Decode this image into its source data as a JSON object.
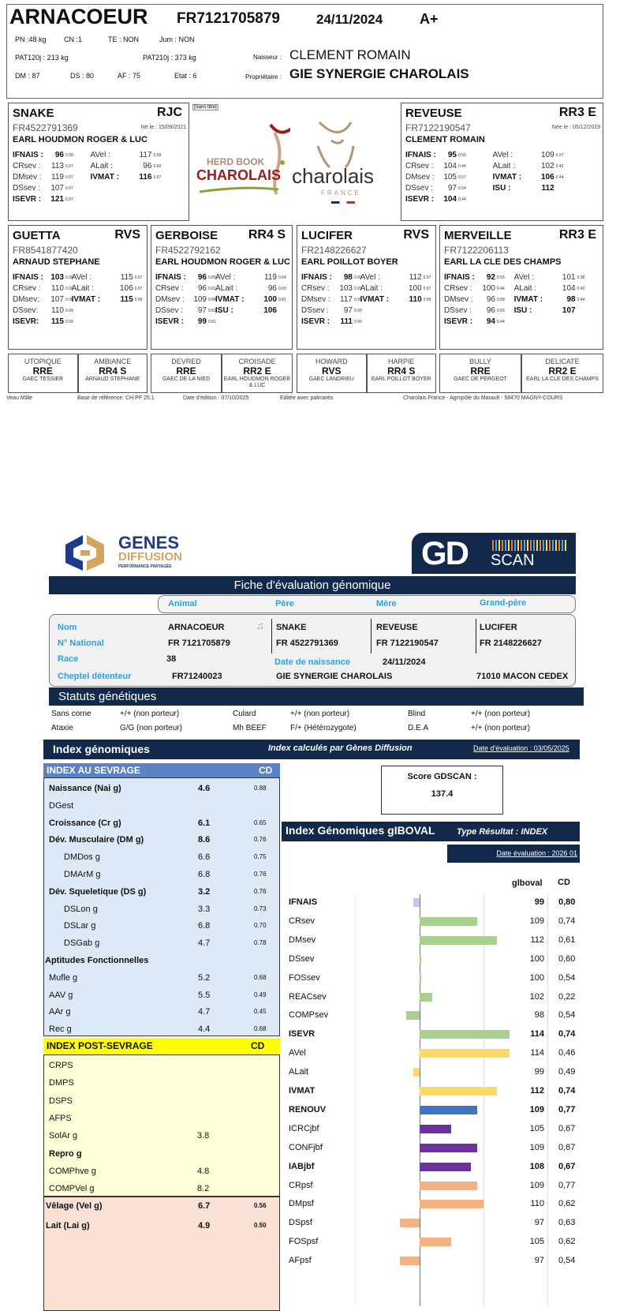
{
  "pedigree": {
    "animal": {
      "name": "ARNACOEUR",
      "national": "FR7121705879",
      "birth": "24/11/2024",
      "grade": "A+",
      "line1": [
        "PN :48 kg",
        "CN :1",
        "TE : NON",
        "Jum : NON"
      ],
      "line2": [
        "PAT120j : 213 kg",
        "PAT210j : 373 kg"
      ],
      "line3": [
        "DM : 87",
        "DS : 80",
        "AF : 75",
        "Etat : 6"
      ],
      "breeder_label": "Naisseur :",
      "breeder": "CLEMENT ROMAIN",
      "owner_label": "Propriétaire :",
      "owner": "GIE SYNERGIE CHAROLAIS"
    },
    "tooltip": "[Sans titre]",
    "logos": {
      "herdbook_top": "HERD BOOK",
      "herdbook_main": "CHAROLAIS",
      "cf_main": "charolais",
      "cf_sub": "FRANCE"
    },
    "sire": {
      "name": "SNAKE",
      "cls": "RJC",
      "nat": "FR4522791369",
      "born": "Né le : 15/09/2021",
      "owner": "EARL HOUDMON ROGER & LUC",
      "left": [
        [
          "IFNAIS :",
          "96",
          "0.99",
          true
        ],
        [
          "CRsev :",
          "113",
          "0.97",
          false
        ],
        [
          "DMsev :",
          "119",
          "0.97",
          false
        ],
        [
          "DSsev :",
          "107",
          "0.97",
          false
        ],
        [
          "ISEVR :",
          "121",
          "0.97",
          true
        ]
      ],
      "right": [
        [
          "AVel :",
          "117",
          "0.58",
          false
        ],
        [
          "ALait :",
          "96",
          "0.60",
          false
        ],
        [
          "IVMAT :",
          "116",
          "0.97",
          true
        ]
      ]
    },
    "dam": {
      "name": "REVEUSE",
      "cls": "RR3 E",
      "nat": "FR7122190547",
      "born": "Née le : 05/12/2019",
      "owner": "CLEMENT ROMAIN",
      "left": [
        [
          "IFNAIS :",
          "95",
          "0.55",
          true
        ],
        [
          "CRsev :",
          "104",
          "0.44",
          false
        ],
        [
          "DMsev :",
          "105",
          "0.57",
          false
        ],
        [
          "DSsev :",
          "97",
          "0.54",
          false
        ],
        [
          "ISEVR :",
          "104",
          "0.44",
          true
        ]
      ],
      "right": [
        [
          "AVel :",
          "109",
          "0.37",
          false
        ],
        [
          "ALait :",
          "102",
          "0.42",
          false
        ],
        [
          "IVMAT :",
          "106",
          "0.44",
          true
        ],
        [
          "ISU :",
          "112",
          "",
          true
        ]
      ]
    },
    "grandparents": [
      {
        "name": "GUETTA",
        "cls": "RVS",
        "nat": "FR8541877420",
        "owner": "ARNAUD STEPHANE",
        "left": [
          [
            "IFNAIS :",
            "103",
            "0.99",
            true
          ],
          [
            "CRsev :",
            "110",
            "0.99",
            false
          ],
          [
            "DMsev:",
            "107",
            "0.99",
            false
          ],
          [
            "DSsev:",
            "110",
            "0.99",
            false
          ],
          [
            "ISEVR:",
            "115",
            "0.99",
            true
          ]
        ],
        "right": [
          [
            "AVel :",
            "115",
            "0.97",
            false
          ],
          [
            "ALait :",
            "106",
            "0.97",
            false
          ],
          [
            "IVMAT :",
            "115",
            "0.99",
            true
          ]
        ]
      },
      {
        "name": "GERBOISE",
        "cls": "RR4 S",
        "nat": "FR4522792162",
        "owner": "EARL HOUDMON ROGER & LUC",
        "left": [
          [
            "IFNAIS :",
            "96",
            "0.85",
            true
          ],
          [
            "CRsev :",
            "96",
            "0.81",
            false
          ],
          [
            "DMsev :",
            "109",
            "0.84",
            false
          ],
          [
            "DSsev :",
            "97",
            "0.83",
            false
          ],
          [
            "ISEVR :",
            "99",
            "0.81",
            true
          ]
        ],
        "right": [
          [
            "AVel :",
            "119",
            "0.64",
            false
          ],
          [
            "ALait :",
            "96",
            "0.69",
            false
          ],
          [
            "IVMAT :",
            "100",
            "0.81",
            true
          ],
          [
            "ISU :",
            "106",
            "",
            true
          ]
        ]
      },
      {
        "name": "LUCIFER",
        "cls": "RVS",
        "nat": "FR2148226627",
        "owner": "EARL POILLOT BOYER",
        "left": [
          [
            "IFNAIS :",
            "98",
            "0.99",
            true
          ],
          [
            "CRsev :",
            "103",
            "0.99",
            false
          ],
          [
            "DMsev :",
            "117",
            "0.99",
            false
          ],
          [
            "DSsev :",
            "97",
            "0.99",
            false
          ],
          [
            "ISEVR :",
            "111",
            "0.99",
            true
          ]
        ],
        "right": [
          [
            "AVel :",
            "112",
            "0.97",
            false
          ],
          [
            "ALait :",
            "100",
            "0.97",
            false
          ],
          [
            "IVMAT :",
            "110",
            "0.99",
            true
          ]
        ]
      },
      {
        "name": "MERVEILLE",
        "cls": "RR3 E",
        "nat": "FR7122206113",
        "owner": "EARL LA CLE DES CHAMPS",
        "left": [
          [
            "IFNAIS :",
            "92",
            "0.55",
            true
          ],
          [
            "CRsev :",
            "100",
            "0.44",
            false
          ],
          [
            "DMsev :",
            "96",
            "0.58",
            false
          ],
          [
            "DSsev :",
            "96",
            "0.55",
            false
          ],
          [
            "ISEVR :",
            "94",
            "0.44",
            true
          ]
        ],
        "right": [
          [
            "AVel :",
            "101",
            "0.38",
            false
          ],
          [
            "ALait :",
            "104",
            "0.43",
            false
          ],
          [
            "IVMAT :",
            "98",
            "0.44",
            true
          ],
          [
            "ISU :",
            "107",
            "",
            true
          ]
        ]
      }
    ],
    "great_grandparents": [
      {
        "name": "UTOPIQUE",
        "cls": "RRE",
        "owner": "GAEC TESSIER"
      },
      {
        "name": "AMBIANCE",
        "cls": "RR4 S",
        "owner": "ARNAUD STEPHANE"
      },
      {
        "name": "DEVRED",
        "cls": "RRE",
        "owner": "GAEC DE LA NIED"
      },
      {
        "name": "CROISADE",
        "cls": "RR2 E",
        "owner": "EARL HOUDMON ROGER & LUC"
      },
      {
        "name": "HOWARD",
        "cls": "RVS",
        "owner": "GAEC LANDRIEU"
      },
      {
        "name": "HARPIE",
        "cls": "RR4 S",
        "owner": "EARL POILLOT BOYER"
      },
      {
        "name": "BULLY",
        "cls": "RRE",
        "owner": "GAEC DE PERGEOT"
      },
      {
        "name": "DELICATE",
        "cls": "RR2 E",
        "owner": "EARL LA CLE DES CHAMPS"
      }
    ],
    "footer": [
      "Veau Mâle",
      "Base de référence: CH.PF 25.1",
      "Date d'édition : 07/10/2025",
      "Editée avec palmarès",
      "Charolais France - Agropôle du Marault - 58470 MAGNY-COURS"
    ]
  },
  "genomic": {
    "logo": {
      "genes": "GENES",
      "diffusion": "DIFFUSION",
      "tagline": "PERFORMANCE PARTAGÉE",
      "gd": "GD",
      "scan": "SCAN"
    },
    "title": "Fiche d'évaluation génomique",
    "tabs": [
      "Animal",
      "Père",
      "Mère",
      "Grand-père"
    ],
    "info": {
      "nom_label": "Nom",
      "nat_label": "N° National",
      "race_label": "Race",
      "cheptel_label": "Cheptel détenteur",
      "dob_label": "Date de naissance",
      "animal_name": "ARNACOEUR",
      "animal_nat": "FR 7121705879",
      "race": "38",
      "cheptel": "FR71240023",
      "dob": "24/11/2024",
      "sire_name": "SNAKE",
      "sire_nat": "FR 4522791369",
      "dam_name": "REVEUSE",
      "dam_nat": "FR 7122190547",
      "gs_name": "LUCIFER",
      "gs_nat": "FR 2148226627",
      "holder": "GIE SYNERGIE CHAROLAIS",
      "city": "71010 MACON CEDEX"
    },
    "status_title": "Statuts génétiques",
    "status": [
      [
        "Sans corne",
        "+/+ (non porteur)",
        "Culard",
        "+/+ (non porteur)",
        "Blind",
        "+/+ (non porteur)"
      ],
      [
        "Ataxie",
        "G/G (non porteur)",
        "Mh BEEF",
        "F/+ (Hétérozygote)",
        "D.E.A",
        "+/+ (non porteur)"
      ]
    ],
    "index_title": "Index génomiques",
    "index_sub": "Index calculés par Gènes Diffusion",
    "index_date": "Date d'évaluation : 03/05/2025",
    "sevrage_title": "INDEX AU SEVRAGE",
    "cd": "CD",
    "sevrage": [
      [
        "Naissance (Nai g)",
        "4.6",
        "0.88",
        1,
        0
      ],
      [
        "DGest",
        "",
        "",
        0,
        0
      ],
      [
        "Croissance (Cr g)",
        "6.1",
        "0.65",
        1,
        0
      ],
      [
        "Dév. Musculaire (DM g)",
        "8.6",
        "0.76",
        1,
        0
      ],
      [
        "DMDos g",
        "6.6",
        "0.75",
        0,
        1
      ],
      [
        "DMArM g",
        "6.8",
        "0.76",
        0,
        1
      ],
      [
        "Dév. Squeletique (DS g)",
        "3.2",
        "0.76",
        1,
        0
      ],
      [
        "DSLon g",
        "3.3",
        "0.73",
        0,
        1
      ],
      [
        "DSLar g",
        "6.8",
        "0.70",
        0,
        1
      ],
      [
        "DSGab g",
        "4.7",
        "0.78",
        0,
        1
      ],
      [
        "Aptitudes Fonctionnelles",
        "",
        "",
        1,
        -1
      ],
      [
        "Mufle g",
        "5.2",
        "0.68",
        0,
        0
      ],
      [
        "AAV g",
        "5.5",
        "0.49",
        0,
        0
      ],
      [
        "AAr g",
        "4.7",
        "0.45",
        0,
        0
      ],
      [
        "Rec g",
        "4.4",
        "0.68",
        0,
        0
      ]
    ],
    "post_title": "INDEX POST-SEVRAGE",
    "post": [
      [
        "CRPS",
        "",
        "",
        0
      ],
      [
        "DMPS",
        "",
        "",
        0
      ],
      [
        "DSPS",
        "",
        "",
        0
      ],
      [
        "AFPS",
        "",
        "",
        0
      ],
      [
        "SolAr g",
        "3.8",
        "",
        0
      ],
      [
        "Repro g",
        "",
        "",
        1
      ],
      [
        "COMPhve g",
        "4.8",
        "",
        0
      ],
      [
        "COMPVel g",
        "8.2",
        "",
        0
      ]
    ],
    "maternal": [
      [
        "Vêlage (Vel g)",
        "6.7",
        "0.56"
      ],
      [
        "Lait (Lai g)",
        "4.9",
        "0.50"
      ]
    ],
    "score_label": "Score GDSCAN :",
    "score": "137.4",
    "giboval_title": "Index Génomiques gIBOVAL",
    "result_type": "Type Résultat : INDEX",
    "giboval_date": "Date évaluation : 2026 01",
    "col_value": "glboval",
    "col_cd": "CD"
  },
  "chart_data": {
    "type": "bar",
    "orientation": "horizontal",
    "baseline": 100,
    "xlim": [
      90,
      120
    ],
    "grid": [
      100,
      110
    ],
    "categories": [
      "IFNAIS",
      "CRsev",
      "DMsev",
      "DSsev",
      "FOSsev",
      "REACsev",
      "COMPsev",
      "ISEVR",
      "AVel",
      "ALait",
      "IVMAT",
      "RENOUV",
      "ICRCjbf",
      "CONFjbf",
      "IABjbf",
      "CRpsf",
      "DMpsf",
      "DSpsf",
      "FOSpsf",
      "AFpsf"
    ],
    "values": [
      99,
      109,
      112,
      100,
      100,
      102,
      98,
      114,
      114,
      99,
      112,
      109,
      105,
      109,
      108,
      109,
      110,
      97,
      105,
      97
    ],
    "cd": [
      "0,80",
      "0,74",
      "0,61",
      "0,60",
      "0,54",
      "0,22",
      "0,54",
      "0,74",
      "0,46",
      "0,49",
      "0,74",
      "0,77",
      "0,67",
      "0,67",
      "0,67",
      "0,77",
      "0,62",
      "0,63",
      "0,62",
      "0,54"
    ],
    "bold": [
      1,
      0,
      0,
      0,
      0,
      0,
      0,
      1,
      0,
      0,
      1,
      1,
      0,
      0,
      1,
      0,
      0,
      0,
      0,
      0
    ],
    "colors": [
      "#c6c6f0",
      "#a9d08e",
      "#a9d08e",
      "#a9d08e",
      "#a9d08e",
      "#a9d08e",
      "#a9d08e",
      "#a9d08e",
      "#ffd966",
      "#ffd966",
      "#ffd966",
      "#4472c4",
      "#7030a0",
      "#7030a0",
      "#7030a0",
      "#f4b183",
      "#f4b183",
      "#f4b183",
      "#f4b183",
      "#f4b183"
    ]
  }
}
